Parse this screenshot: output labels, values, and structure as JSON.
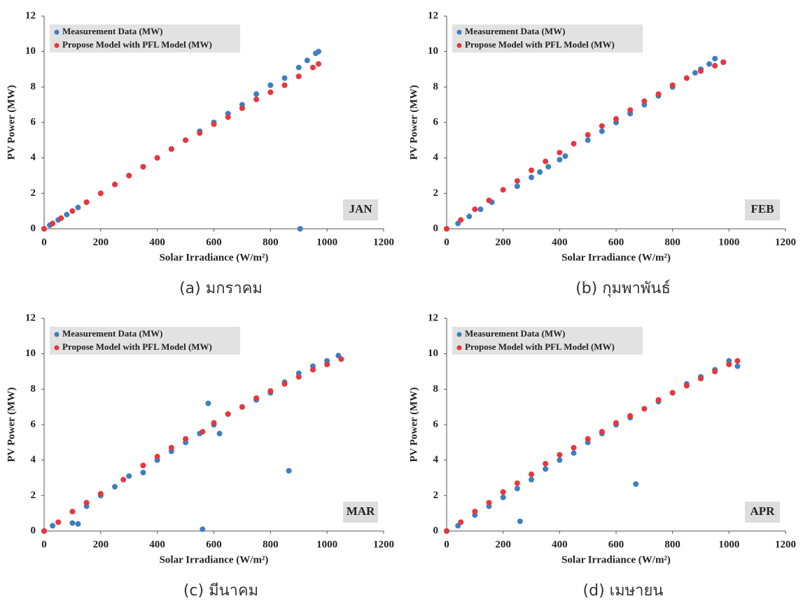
{
  "chart_data": [
    {
      "type": "scatter",
      "annotation": "JAN",
      "caption": "(a) มกราคม",
      "x_label": "Solar Irradiance (W/m²)",
      "y_label": "PV Power (MW)",
      "xlim": [
        0,
        1200
      ],
      "ylim": [
        0,
        12
      ],
      "xticks": [
        0,
        200,
        400,
        600,
        800,
        1000,
        1200
      ],
      "yticks": [
        0,
        2,
        4,
        6,
        8,
        10,
        12
      ],
      "legend": "upper left",
      "series": [
        {
          "name": "Measurement Data (MW)",
          "color": "#3d7fc1",
          "x": [
            0,
            20,
            50,
            80,
            120,
            150,
            200,
            250,
            300,
            350,
            400,
            450,
            500,
            550,
            600,
            650,
            700,
            750,
            800,
            850,
            900,
            930,
            960,
            970,
            905
          ],
          "values": [
            0,
            0.2,
            0.5,
            0.8,
            1.2,
            1.5,
            2.0,
            2.5,
            3.0,
            3.5,
            4.0,
            4.5,
            5.0,
            5.5,
            6.0,
            6.5,
            7.0,
            7.6,
            8.1,
            8.5,
            9.1,
            9.5,
            9.9,
            10.0,
            0
          ]
        },
        {
          "name": "Propose Model with PFL Model (MW)",
          "color": "#e8363d",
          "x": [
            0,
            30,
            60,
            100,
            150,
            200,
            250,
            300,
            350,
            400,
            450,
            500,
            550,
            600,
            650,
            700,
            750,
            800,
            850,
            900,
            950,
            970
          ],
          "values": [
            0,
            0.3,
            0.6,
            1.0,
            1.5,
            2.0,
            2.5,
            3.0,
            3.5,
            4.0,
            4.5,
            5.0,
            5.4,
            5.9,
            6.3,
            6.8,
            7.3,
            7.7,
            8.1,
            8.6,
            9.1,
            9.3
          ]
        }
      ]
    },
    {
      "type": "scatter",
      "annotation": "FEB",
      "caption": "(b) กุมพาพันธ์",
      "x_label": "Solar Irradiance (W/m²)",
      "y_label": "PV Power (MW)",
      "xlim": [
        0,
        1200
      ],
      "ylim": [
        0,
        12
      ],
      "xticks": [
        0,
        200,
        400,
        600,
        800,
        1000,
        1200
      ],
      "yticks": [
        0,
        2,
        4,
        6,
        8,
        10,
        12
      ],
      "legend": "upper left",
      "series": [
        {
          "name": "Measurement Data (MW)",
          "color": "#3d7fc1",
          "x": [
            0,
            40,
            80,
            120,
            160,
            250,
            300,
            330,
            360,
            400,
            420,
            500,
            550,
            600,
            650,
            700,
            750,
            800,
            850,
            880,
            900,
            930,
            950,
            980
          ],
          "values": [
            0,
            0.3,
            0.7,
            1.1,
            1.5,
            2.4,
            2.9,
            3.2,
            3.5,
            3.9,
            4.1,
            5.0,
            5.5,
            6.0,
            6.5,
            7.0,
            7.5,
            8.0,
            8.5,
            8.8,
            9.0,
            9.3,
            9.6,
            9.4
          ]
        },
        {
          "name": "Propose Model with PFL Model (MW)",
          "color": "#e8363d",
          "x": [
            0,
            50,
            100,
            150,
            200,
            250,
            300,
            350,
            400,
            450,
            500,
            550,
            600,
            650,
            700,
            750,
            800,
            850,
            900,
            950,
            980
          ],
          "values": [
            0,
            0.5,
            1.1,
            1.6,
            2.2,
            2.7,
            3.3,
            3.8,
            4.3,
            4.8,
            5.3,
            5.8,
            6.2,
            6.7,
            7.2,
            7.6,
            8.1,
            8.5,
            8.9,
            9.2,
            9.4
          ]
        }
      ]
    },
    {
      "type": "scatter",
      "annotation": "MAR",
      "caption": "(c) มีนาคม",
      "x_label": "Solar Irradiance (W/m²)",
      "y_label": "PV Power (MW)",
      "xlim": [
        0,
        1200
      ],
      "ylim": [
        0,
        12
      ],
      "xticks": [
        0,
        200,
        400,
        600,
        800,
        1000,
        1200
      ],
      "yticks": [
        0,
        2,
        4,
        6,
        8,
        10,
        12
      ],
      "legend": "upper left",
      "series": [
        {
          "name": "Measurement Data (MW)",
          "color": "#3d7fc1",
          "x": [
            0,
            30,
            100,
            120,
            150,
            200,
            250,
            300,
            350,
            400,
            450,
            500,
            550,
            580,
            600,
            620,
            650,
            700,
            750,
            800,
            850,
            900,
            950,
            1000,
            1040,
            560,
            865
          ],
          "values": [
            0,
            0.3,
            0.45,
            0.4,
            1.4,
            2.0,
            2.5,
            3.1,
            3.3,
            4.0,
            4.5,
            5.0,
            5.5,
            7.2,
            6.0,
            5.5,
            6.6,
            7.0,
            7.4,
            7.8,
            8.4,
            8.9,
            9.3,
            9.6,
            9.9,
            0.1,
            3.4
          ]
        },
        {
          "name": "Propose Model with PFL Model (MW)",
          "color": "#e8363d",
          "x": [
            0,
            50,
            100,
            150,
            200,
            280,
            350,
            400,
            450,
            500,
            560,
            600,
            650,
            700,
            750,
            800,
            850,
            900,
            950,
            1000,
            1050
          ],
          "values": [
            0,
            0.5,
            1.1,
            1.6,
            2.1,
            2.9,
            3.7,
            4.2,
            4.7,
            5.2,
            5.6,
            6.1,
            6.6,
            7.0,
            7.5,
            7.9,
            8.3,
            8.7,
            9.1,
            9.4,
            9.7
          ]
        }
      ]
    },
    {
      "type": "scatter",
      "annotation": "APR",
      "caption": "(d) เมษายน",
      "x_label": "Solar Irradiance (W/m²)",
      "y_label": "PV Power (MW)",
      "xlim": [
        0,
        1200
      ],
      "ylim": [
        0,
        12
      ],
      "xticks": [
        0,
        200,
        400,
        600,
        800,
        1000,
        1200
      ],
      "yticks": [
        0,
        2,
        4,
        6,
        8,
        10,
        12
      ],
      "legend": "upper left",
      "series": [
        {
          "name": "Measurement Data (MW)",
          "color": "#3d7fc1",
          "x": [
            0,
            40,
            100,
            150,
            200,
            250,
            300,
            350,
            400,
            450,
            500,
            550,
            600,
            650,
            700,
            750,
            800,
            850,
            900,
            950,
            1000,
            1030,
            260,
            670
          ],
          "values": [
            0,
            0.3,
            0.9,
            1.4,
            1.9,
            2.4,
            2.9,
            3.5,
            4.0,
            4.4,
            5.0,
            5.5,
            6.0,
            6.4,
            6.9,
            7.3,
            7.8,
            8.3,
            8.7,
            9.1,
            9.6,
            9.3,
            0.55,
            2.65
          ]
        },
        {
          "name": "Propose Model with PFL Model (MW)",
          "color": "#e8363d",
          "x": [
            0,
            50,
            100,
            150,
            200,
            250,
            300,
            350,
            400,
            450,
            500,
            550,
            600,
            650,
            700,
            750,
            800,
            850,
            900,
            950,
            1000,
            1030
          ],
          "values": [
            0,
            0.5,
            1.1,
            1.6,
            2.2,
            2.7,
            3.2,
            3.8,
            4.3,
            4.7,
            5.2,
            5.6,
            6.1,
            6.5,
            6.9,
            7.4,
            7.8,
            8.2,
            8.6,
            9.0,
            9.4,
            9.6
          ]
        }
      ]
    }
  ]
}
